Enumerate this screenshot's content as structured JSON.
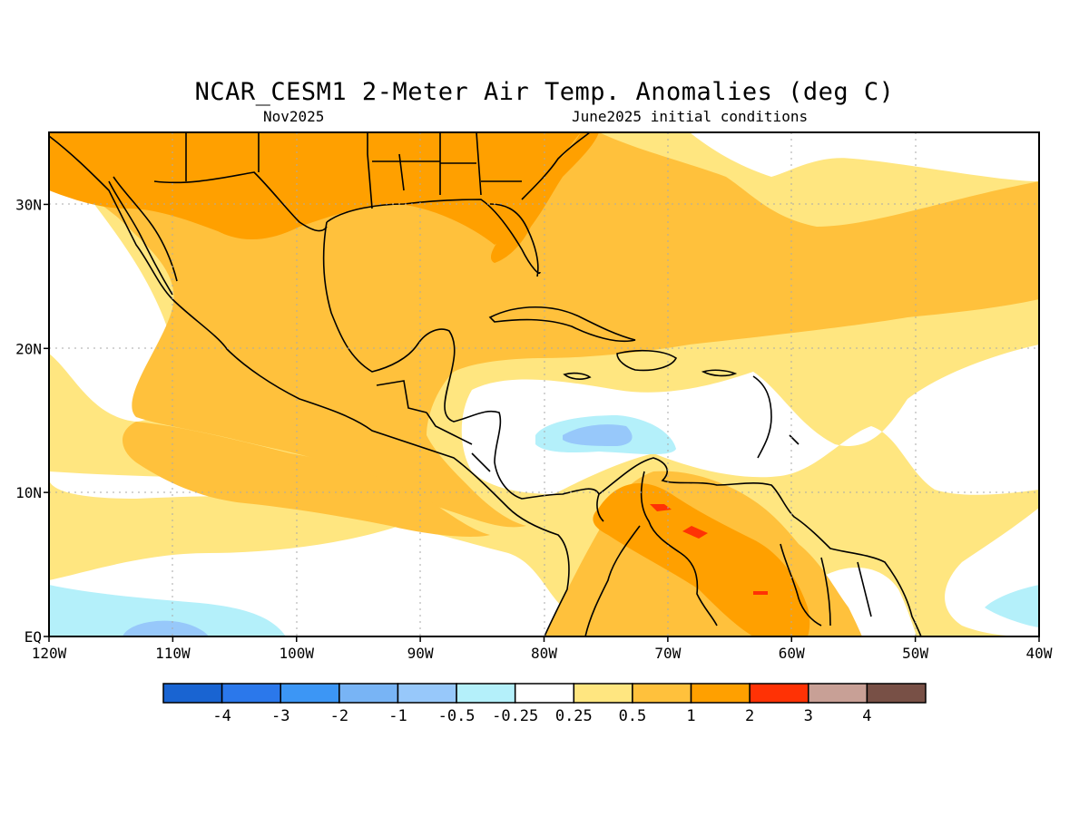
{
  "title": "NCAR_CESM1 2-Meter Air Temp. Anomalies (deg C)",
  "subtitle_left": "Nov2025",
  "subtitle_right": "June2025 initial conditions",
  "axes": {
    "y_ticks": [
      {
        "label": "30N",
        "lat": 30
      },
      {
        "label": "20N",
        "lat": 20
      },
      {
        "label": "10N",
        "lat": 10
      },
      {
        "label": "EQ",
        "lat": 0
      }
    ],
    "x_ticks": [
      {
        "label": "120W",
        "lon": -120
      },
      {
        "label": "110W",
        "lon": -110
      },
      {
        "label": "100W",
        "lon": -100
      },
      {
        "label": "90W",
        "lon": -90
      },
      {
        "label": "80W",
        "lon": -80
      },
      {
        "label": "70W",
        "lon": -70
      },
      {
        "label": "60W",
        "lon": -60
      },
      {
        "label": "50W",
        "lon": -50
      },
      {
        "label": "40W",
        "lon": -40
      }
    ],
    "lon_range": [
      -120,
      -40
    ],
    "lat_range": [
      0,
      35
    ]
  },
  "colorbar": {
    "colors": [
      "#1964d2",
      "#2b78eb",
      "#3c96f5",
      "#78b4f5",
      "#97c8fa",
      "#b4f0fa",
      "#ffffff",
      "#ffe680",
      "#ffc13c",
      "#ffa000",
      "#ff3205",
      "#c8a096",
      "#785046"
    ],
    "labels": [
      "-4",
      "-3",
      "-2",
      "-1",
      "-0.5",
      "-0.25",
      "0.25",
      "0.5",
      "1",
      "2",
      "3",
      "4"
    ]
  },
  "map_colors": {
    "white": "#ffffff",
    "light_yellow": "#ffe680",
    "yellow_orange": "#ffc13c",
    "orange": "#ffa000",
    "red": "#ff3205",
    "light_blue": "#b4f0fa",
    "blue": "#97c8fa"
  }
}
